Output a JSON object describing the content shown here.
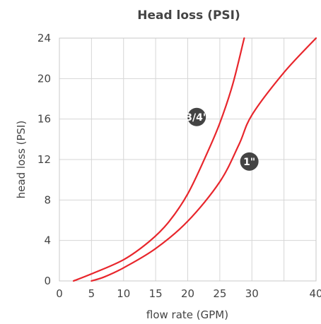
{
  "chart_data": {
    "type": "line",
    "title": "Head loss (PSI)",
    "xlabel": "flow rate (GPM)",
    "ylabel": "head loss (PSI)",
    "xlim": [
      0,
      40
    ],
    "ylim": [
      0,
      24
    ],
    "x_ticks": [
      0,
      5,
      10,
      15,
      20,
      25,
      30,
      40
    ],
    "x_tick_labels": [
      "0",
      "5",
      "10",
      "15",
      "20",
      "25",
      "30",
      "40"
    ],
    "y_ticks": [
      0,
      4,
      8,
      12,
      16,
      20,
      24
    ],
    "y_tick_labels": [
      "0",
      "4",
      "8",
      "12",
      "16",
      "20",
      "24"
    ],
    "grid": true,
    "series": [
      {
        "name": "3/4\"",
        "color": "#e8262c",
        "points": [
          [
            2.2,
            0
          ],
          [
            5,
            0.7
          ],
          [
            10,
            2.1
          ],
          [
            14,
            3.9
          ],
          [
            17,
            5.8
          ],
          [
            20,
            8.6
          ],
          [
            23,
            12.6
          ],
          [
            25,
            15.6
          ],
          [
            27,
            19.4
          ],
          [
            28.8,
            24
          ]
        ]
      },
      {
        "name": "1\"",
        "color": "#e8262c",
        "points": [
          [
            5,
            0
          ],
          [
            7,
            0.4
          ],
          [
            10,
            1.3
          ],
          [
            15,
            3.2
          ],
          [
            20,
            5.9
          ],
          [
            25,
            9.8
          ],
          [
            28,
            13.5
          ],
          [
            30,
            16.4
          ],
          [
            35,
            20.6
          ],
          [
            40,
            24
          ]
        ]
      }
    ],
    "series_labels": [
      {
        "text": "3/4\"",
        "x": 21.4,
        "y": 16.2
      },
      {
        "text": "1\"",
        "x": 29.6,
        "y": 11.8
      }
    ]
  }
}
